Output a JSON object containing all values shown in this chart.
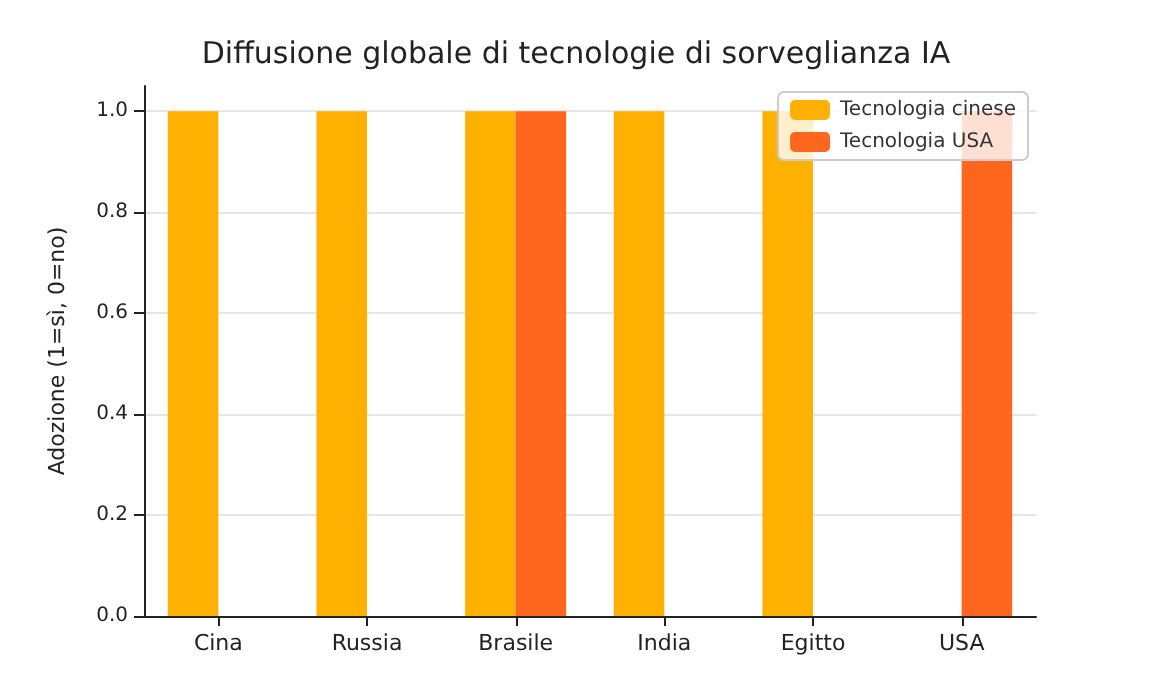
{
  "chart_data": {
    "type": "bar",
    "title": "Diffusione globale di tecnologie di sorveglianza IA",
    "ylabel": "Adozione (1=sì, 0=no)",
    "categories": [
      "Cina",
      "Russia",
      "Brasile",
      "India",
      "Egitto",
      "USA"
    ],
    "series": [
      {
        "name": "Tecnologia cinese",
        "color": "#ffb000",
        "values": [
          1,
          1,
          1,
          1,
          1,
          0
        ]
      },
      {
        "name": "Tecnologia USA",
        "color": "#ff671f",
        "values": [
          0,
          0,
          1,
          0,
          0,
          1
        ]
      }
    ],
    "ylim": [
      0,
      1.05
    ],
    "yticks": [
      {
        "value": 0,
        "label": "0.0"
      },
      {
        "value": 0.2,
        "label": "0.2"
      },
      {
        "value": 0.4,
        "label": "0.4"
      },
      {
        "value": 0.6,
        "label": "0.6"
      },
      {
        "value": 0.8,
        "label": "0.8"
      },
      {
        "value": 1,
        "label": "1.0"
      }
    ],
    "grid": "y",
    "legend": "top right"
  }
}
